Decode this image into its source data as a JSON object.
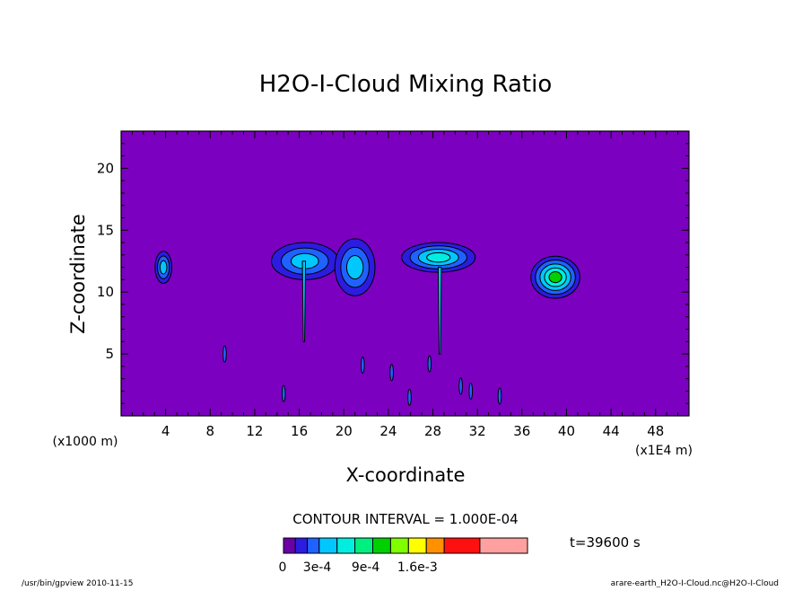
{
  "chart_data": {
    "type": "heatmap",
    "title": "H2O-I-Cloud Mixing Ratio",
    "xlabel": "X-coordinate",
    "ylabel": "Z-coordinate",
    "x_unit_left": "(x1000 m)",
    "x_unit_right": "(x1E4 m)",
    "xlim": [
      0,
      51
    ],
    "ylim": [
      0,
      23
    ],
    "x_ticks": [
      4,
      8,
      12,
      16,
      20,
      24,
      28,
      32,
      36,
      40,
      44,
      48
    ],
    "y_ticks": [
      5,
      10,
      15,
      20
    ],
    "contour_interval_text": "CONTOUR INTERVAL = 1.000E-04",
    "time_text": "t=39600 s",
    "colorbar": {
      "colors": [
        "#6a00a8",
        "#2c1ce0",
        "#2062ff",
        "#00c8ff",
        "#00eee0",
        "#00f080",
        "#00d000",
        "#80ff00",
        "#ffff00",
        "#ff9000",
        "#ff1010",
        "#ffa0a0"
      ],
      "labels": [
        "0",
        "3e-4",
        "9e-4",
        "1.6e-3"
      ]
    },
    "levels": {
      "background": "#7b00c0",
      "level_colors": [
        "#2c1ce0",
        "#2062ff",
        "#00c8ff",
        "#00eee0",
        "#00d000"
      ]
    },
    "clouds": [
      {
        "x": 3.8,
        "z": 12.0,
        "rx": 0.75,
        "rz": 1.3,
        "peak": 3
      },
      {
        "x": 16.5,
        "z": 12.5,
        "rx": 3.0,
        "rz": 1.5,
        "peak": 3
      },
      {
        "x": 21.0,
        "z": 12.0,
        "rx": 1.8,
        "rz": 2.3,
        "peak": 3
      },
      {
        "x": 28.5,
        "z": 12.8,
        "rx": 3.3,
        "rz": 1.2,
        "peak": 4
      },
      {
        "x": 39.0,
        "z": 11.2,
        "rx": 2.2,
        "rz": 1.7,
        "peak": 5
      }
    ],
    "stems": [
      {
        "x": 16.4,
        "z_bottom": 6.0,
        "z_top": 12.5
      },
      {
        "x": 28.6,
        "z_bottom": 5.0,
        "z_top": 12.0
      }
    ],
    "small_cells": [
      {
        "x": 24.3,
        "z": 3.5
      },
      {
        "x": 27.7,
        "z": 4.2
      },
      {
        "x": 25.9,
        "z": 1.5
      },
      {
        "x": 30.5,
        "z": 2.4
      },
      {
        "x": 14.6,
        "z": 1.8
      },
      {
        "x": 9.3,
        "z": 5.0
      },
      {
        "x": 21.7,
        "z": 4.1
      },
      {
        "x": 31.4,
        "z": 2.0
      },
      {
        "x": 34.0,
        "z": 1.6
      }
    ]
  },
  "footer": {
    "left": "/usr/bin/gpview   2010-11-15",
    "right": "arare-earth_H2O-I-Cloud.nc@H2O-I-Cloud"
  }
}
